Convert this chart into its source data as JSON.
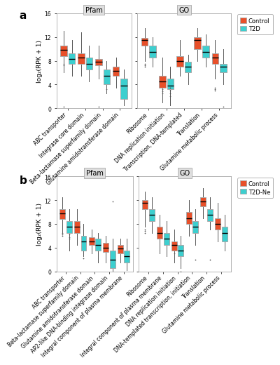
{
  "panel_a": {
    "label": "a",
    "pfam_categories": [
      "ABC transporter",
      "Integrase core domain",
      "Beta-lactamase superfamily domain",
      "Glutamine amidotransferase domain"
    ],
    "go_categories": [
      "Ribosome",
      "DNA replication initiation",
      "Transcription, DNA-templated",
      "Translation",
      "Glutamine metabolic process"
    ],
    "legend_label1": "Control",
    "legend_label2": "T2D",
    "pfam_control": [
      {
        "q1": 8.8,
        "median": 9.8,
        "q3": 10.5,
        "whislo": 6.0,
        "whishi": 13.0,
        "fliers": [
          7.5,
          7.2,
          0.3
        ]
      },
      {
        "q1": 7.5,
        "median": 8.5,
        "q3": 9.2,
        "whislo": 5.5,
        "whishi": 12.8,
        "fliers": []
      },
      {
        "q1": 7.2,
        "median": 7.8,
        "q3": 8.3,
        "whislo": 5.0,
        "whishi": 10.5,
        "fliers": [
          0.2
        ]
      },
      {
        "q1": 5.5,
        "median": 6.3,
        "q3": 7.0,
        "whislo": 3.5,
        "whishi": 8.5,
        "fliers": []
      }
    ],
    "pfam_t2d": [
      {
        "q1": 7.5,
        "median": 8.3,
        "q3": 9.2,
        "whislo": 5.5,
        "whishi": 11.5,
        "fliers": []
      },
      {
        "q1": 6.5,
        "median": 7.5,
        "q3": 8.5,
        "whislo": 4.5,
        "whishi": 10.5,
        "fliers": []
      },
      {
        "q1": 4.0,
        "median": 5.5,
        "q3": 6.5,
        "whislo": 2.5,
        "whishi": 8.0,
        "fliers": [
          3.2
        ]
      },
      {
        "q1": 1.5,
        "median": 3.8,
        "q3": 5.0,
        "whislo": 0.5,
        "whishi": 6.5,
        "fliers": []
      }
    ],
    "go_control": [
      {
        "q1": 10.5,
        "median": 11.5,
        "q3": 11.8,
        "whislo": 8.0,
        "whishi": 13.5,
        "fliers": [
          7.5,
          7.2,
          7.0
        ]
      },
      {
        "q1": 3.5,
        "median": 4.5,
        "q3": 5.5,
        "whislo": 1.0,
        "whishi": 8.5,
        "fliers": [
          3.2,
          2.8,
          2.5
        ]
      },
      {
        "q1": 7.0,
        "median": 8.0,
        "q3": 8.8,
        "whislo": 5.5,
        "whishi": 11.5,
        "fliers": []
      },
      {
        "q1": 10.0,
        "median": 11.5,
        "q3": 12.0,
        "whislo": 8.0,
        "whishi": 13.5,
        "fliers": []
      },
      {
        "q1": 7.5,
        "median": 8.5,
        "q3": 9.2,
        "whislo": 5.0,
        "whishi": 11.5,
        "fliers": [
          3.5,
          3.2,
          3.0
        ]
      }
    ],
    "go_t2d": [
      {
        "q1": 8.5,
        "median": 9.5,
        "q3": 10.5,
        "whislo": 7.0,
        "whishi": 12.0,
        "fliers": []
      },
      {
        "q1": 3.2,
        "median": 3.8,
        "q3": 5.0,
        "whislo": 0.5,
        "whishi": 7.0,
        "fliers": [
          3.5,
          3.0,
          2.5,
          2.0
        ]
      },
      {
        "q1": 6.0,
        "median": 7.0,
        "q3": 7.8,
        "whislo": 4.0,
        "whishi": 9.0,
        "fliers": []
      },
      {
        "q1": 8.5,
        "median": 9.5,
        "q3": 10.5,
        "whislo": 7.0,
        "whishi": 12.5,
        "fliers": []
      },
      {
        "q1": 6.0,
        "median": 7.0,
        "q3": 7.5,
        "whislo": 4.0,
        "whishi": 10.0,
        "fliers": [
          0.2
        ]
      }
    ]
  },
  "panel_b": {
    "label": "b",
    "pfam_categories": [
      "ABC transporter",
      "Beta-lactamase superfamily domain",
      "Glutamine amidotransferase domain",
      "AP2-like DNA-binding integrase domain",
      "Integral component of plasma membrane"
    ],
    "go_categories": [
      "Ribosome",
      "Integral component of plasma membrane",
      "DNA replication initiation",
      "DNA-templated transcription, initiation",
      "Translation",
      "Glutamine metabolic process"
    ],
    "legend_label1": "Control",
    "legend_label2": "T2D-Ne",
    "pfam_control": [
      {
        "q1": 8.8,
        "median": 9.8,
        "q3": 10.5,
        "whislo": 6.5,
        "whishi": 12.5,
        "fliers": [
          6.5,
          6.2,
          6.0
        ]
      },
      {
        "q1": 6.5,
        "median": 7.5,
        "q3": 8.5,
        "whislo": 4.5,
        "whishi": 10.5,
        "fliers": []
      },
      {
        "q1": 4.5,
        "median": 5.0,
        "q3": 5.8,
        "whislo": 3.0,
        "whishi": 7.0,
        "fliers": []
      },
      {
        "q1": 3.2,
        "median": 4.0,
        "q3": 4.8,
        "whislo": 1.5,
        "whishi": 6.0,
        "fliers": []
      },
      {
        "q1": 3.0,
        "median": 3.8,
        "q3": 4.5,
        "whislo": 1.5,
        "whishi": 5.5,
        "fliers": []
      }
    ],
    "pfam_t2dne": [
      {
        "q1": 6.5,
        "median": 7.5,
        "q3": 8.5,
        "whislo": 3.5,
        "whishi": 10.5,
        "fliers": [
          6.2,
          5.8,
          5.5
        ]
      },
      {
        "q1": 3.5,
        "median": 5.0,
        "q3": 6.0,
        "whislo": 2.5,
        "whishi": 8.0,
        "fliers": [
          2.2
        ]
      },
      {
        "q1": 3.5,
        "median": 4.5,
        "q3": 5.5,
        "whislo": 1.5,
        "whishi": 6.5,
        "fliers": []
      },
      {
        "q1": 0.5,
        "median": 2.0,
        "q3": 3.5,
        "whislo": 0.0,
        "whishi": 5.5,
        "fliers": [
          11.8
        ]
      },
      {
        "q1": 1.5,
        "median": 2.5,
        "q3": 3.5,
        "whislo": 0.2,
        "whishi": 5.5,
        "fliers": []
      }
    ],
    "go_control": [
      {
        "q1": 10.5,
        "median": 11.5,
        "q3": 12.0,
        "whislo": 7.5,
        "whishi": 13.5,
        "fliers": [
          7.0,
          6.8,
          6.5
        ]
      },
      {
        "q1": 5.5,
        "median": 6.5,
        "q3": 7.5,
        "whislo": 3.0,
        "whishi": 9.5,
        "fliers": []
      },
      {
        "q1": 3.5,
        "median": 4.5,
        "q3": 5.0,
        "whislo": 1.5,
        "whishi": 7.0,
        "fliers": [
          3.0
        ]
      },
      {
        "q1": 8.0,
        "median": 9.0,
        "q3": 10.0,
        "whislo": 6.0,
        "whishi": 12.0,
        "fliers": []
      },
      {
        "q1": 11.0,
        "median": 11.8,
        "q3": 12.5,
        "whislo": 9.0,
        "whishi": 14.0,
        "fliers": []
      },
      {
        "q1": 7.0,
        "median": 8.0,
        "q3": 9.0,
        "whislo": 5.0,
        "whishi": 11.5,
        "fliers": []
      }
    ],
    "go_t2dne": [
      {
        "q1": 8.5,
        "median": 9.5,
        "q3": 10.5,
        "whislo": 6.5,
        "whishi": 12.5,
        "fliers": []
      },
      {
        "q1": 4.5,
        "median": 5.5,
        "q3": 6.5,
        "whislo": 2.5,
        "whishi": 8.5,
        "fliers": []
      },
      {
        "q1": 2.5,
        "median": 3.5,
        "q3": 4.5,
        "whislo": 0.5,
        "whishi": 6.0,
        "fliers": [
          0.0
        ]
      },
      {
        "q1": 6.5,
        "median": 7.5,
        "q3": 8.5,
        "whislo": 4.5,
        "whishi": 10.5,
        "fliers": [
          2.0
        ]
      },
      {
        "q1": 8.5,
        "median": 9.5,
        "q3": 10.5,
        "whislo": 7.0,
        "whishi": 12.5,
        "fliers": [
          2.0
        ]
      },
      {
        "q1": 5.0,
        "median": 6.5,
        "q3": 7.5,
        "whislo": 3.5,
        "whishi": 9.5,
        "fliers": []
      }
    ]
  },
  "colors": {
    "control": "#E8502A",
    "t2d": "#3DCFCF",
    "strip_bg": "#DEDEDE",
    "strip_border": "#AAAAAA",
    "panel_border": "#AAAAAA",
    "median_line": "#000000",
    "whisker_color": "#555555",
    "outlier_color": "#555555"
  },
  "ylabel": "log₂(RPK + 1)",
  "ylim": [
    0,
    16
  ],
  "yticks": [
    0,
    4,
    8,
    12,
    16
  ]
}
